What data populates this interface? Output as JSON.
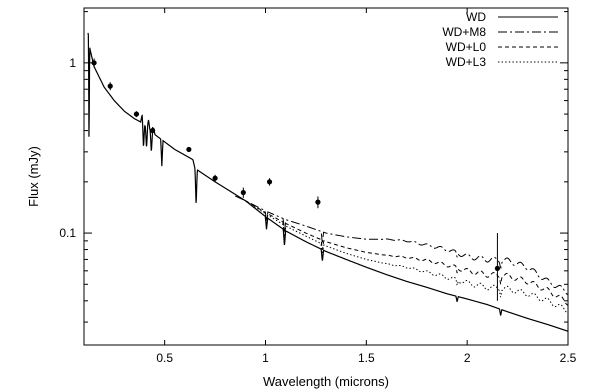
{
  "chart_data": {
    "type": "line",
    "xlabel": "Wavelength (microns)",
    "ylabel": "Flux (mJy)",
    "xlim": [
      0.1,
      2.5
    ],
    "ylim": [
      0.022,
      2.1
    ],
    "yscale": "log",
    "xticks": [
      {
        "value": 0.5,
        "label": "0.5"
      },
      {
        "value": 1.0,
        "label": "1"
      },
      {
        "value": 1.5,
        "label": "1.5"
      },
      {
        "value": 2.0,
        "label": "2"
      },
      {
        "value": 2.5,
        "label": "2.5"
      }
    ],
    "yticks": [
      {
        "value": 1,
        "label": "1"
      },
      {
        "value": 0.1,
        "label": "0.1"
      }
    ],
    "legend_position": "top-right",
    "series": [
      {
        "name": "WD",
        "style": "solid",
        "x": [
          0.12,
          0.13,
          0.15,
          0.2,
          0.25,
          0.3,
          0.35,
          0.38,
          0.45,
          0.55,
          0.64,
          0.65,
          0.75,
          0.9,
          1.0,
          1.1,
          1.2,
          1.3,
          1.4,
          1.5,
          1.6,
          1.7,
          1.8,
          1.9,
          2.0,
          2.1,
          2.2,
          2.3,
          2.4,
          2.5
        ],
        "y": [
          1.5,
          1.2,
          0.95,
          0.72,
          0.6,
          0.52,
          0.47,
          0.45,
          0.38,
          0.31,
          0.27,
          0.24,
          0.2,
          0.155,
          0.125,
          0.103,
          0.089,
          0.078,
          0.07,
          0.063,
          0.057,
          0.052,
          0.048,
          0.044,
          0.041,
          0.038,
          0.0345,
          0.0315,
          0.029,
          0.0265
        ]
      },
      {
        "name": "WD+M8",
        "style": "dashdot",
        "x": [
          0.85,
          0.9,
          1.0,
          1.1,
          1.2,
          1.3,
          1.4,
          1.5,
          1.6,
          1.7,
          1.8,
          1.9,
          2.0,
          2.1,
          2.2,
          2.3,
          2.4,
          2.5
        ],
        "y": [
          0.165,
          0.155,
          0.135,
          0.12,
          0.11,
          0.1,
          0.095,
          0.092,
          0.092,
          0.09,
          0.085,
          0.08,
          0.073,
          0.07,
          0.069,
          0.063,
          0.052,
          0.045
        ]
      },
      {
        "name": "WD+L0",
        "style": "dashed",
        "x": [
          0.9,
          1.0,
          1.1,
          1.2,
          1.3,
          1.4,
          1.5,
          1.6,
          1.7,
          1.8,
          1.9,
          2.0,
          2.1,
          2.2,
          2.3,
          2.4,
          2.5
        ],
        "y": [
          0.155,
          0.132,
          0.114,
          0.1,
          0.089,
          0.082,
          0.077,
          0.074,
          0.072,
          0.069,
          0.065,
          0.06,
          0.057,
          0.056,
          0.052,
          0.046,
          0.039
        ]
      },
      {
        "name": "WD+L3",
        "style": "dotted",
        "x": [
          0.9,
          1.0,
          1.1,
          1.2,
          1.3,
          1.4,
          1.5,
          1.6,
          1.7,
          1.8,
          1.9,
          2.0,
          2.1,
          2.2,
          2.3,
          2.4,
          2.5
        ],
        "y": [
          0.155,
          0.13,
          0.11,
          0.096,
          0.084,
          0.076,
          0.07,
          0.066,
          0.063,
          0.059,
          0.055,
          0.051,
          0.048,
          0.047,
          0.044,
          0.04,
          0.035
        ]
      }
    ],
    "observations": {
      "x": [
        0.15,
        0.23,
        0.36,
        0.44,
        0.62,
        0.75,
        0.89,
        1.02,
        1.26,
        2.15
      ],
      "y": [
        1.0,
        0.73,
        0.5,
        0.4,
        0.31,
        0.21,
        0.173,
        0.2,
        0.152,
        0.062
      ],
      "yerr_low": [
        0.06,
        0.04,
        0.02,
        0.02,
        0.01,
        0.01,
        0.012,
        0.01,
        0.012,
        0.022
      ],
      "yerr_high": [
        0.06,
        0.04,
        0.02,
        0.02,
        0.01,
        0.01,
        0.012,
        0.01,
        0.012,
        0.038
      ]
    },
    "features": {
      "absorption": [
        {
          "x": 0.125,
          "depth": 0.15
        },
        {
          "x": 0.395,
          "depth": 0.72
        },
        {
          "x": 0.41,
          "depth": 0.75
        },
        {
          "x": 0.434,
          "depth": 0.75
        },
        {
          "x": 0.486,
          "depth": 0.7
        },
        {
          "x": 0.656,
          "depth": 0.6
        },
        {
          "x": 1.005,
          "depth": 0.85
        },
        {
          "x": 1.094,
          "depth": 0.8
        },
        {
          "x": 1.282,
          "depth": 0.85
        },
        {
          "x": 1.95,
          "depth": 0.93
        },
        {
          "x": 2.166,
          "depth": 0.92
        }
      ],
      "bumps": [
        {
          "x": 0.388,
          "factor": 1.12
        },
        {
          "x": 0.42,
          "factor": 1.13
        },
        {
          "x": 0.445,
          "factor": 1.08
        }
      ]
    }
  }
}
